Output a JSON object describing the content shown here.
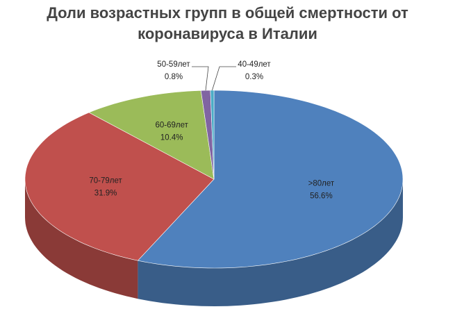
{
  "chart_data": {
    "type": "pie3d",
    "title": "Доли возрастных групп в общей смертности от коронавируса в Италии",
    "categories": [
      ">80лет",
      "70-79лет",
      "60-69лет",
      "50-59лет",
      "40-49лет"
    ],
    "values": [
      56.6,
      31.9,
      10.4,
      0.8,
      0.3
    ],
    "value_labels": [
      "56.6%",
      "31.9%",
      "10.4%",
      "0.8%",
      "0.3%"
    ],
    "colors": [
      "#4f81bd",
      "#c0504d",
      "#9bbb59",
      "#8064a2",
      "#4bacc6"
    ]
  }
}
